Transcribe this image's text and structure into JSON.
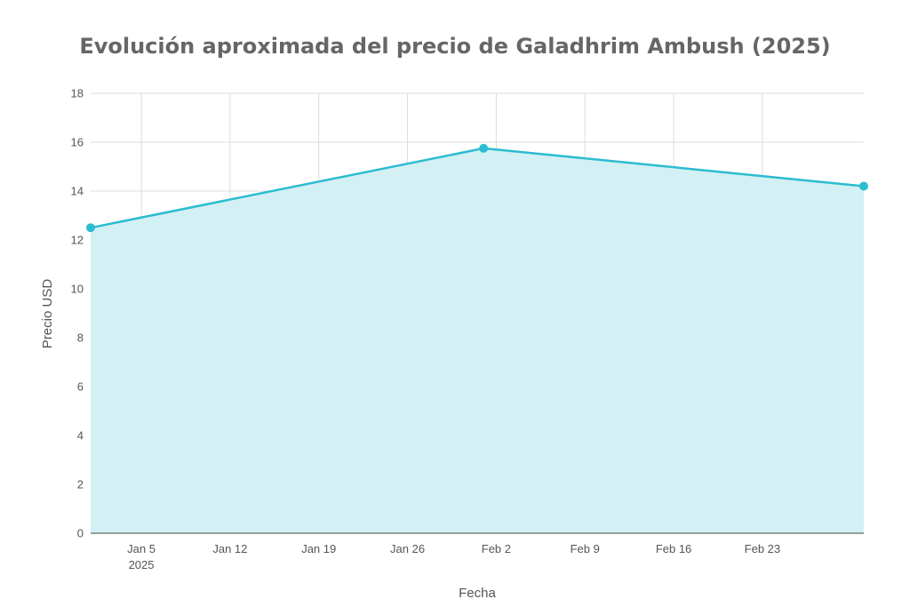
{
  "chart_data": {
    "type": "area",
    "title": "Evolución aproximada del precio de Galadhrim Ambush (2025)",
    "xlabel": "Fecha",
    "ylabel": "Precio USD",
    "x_type": "date",
    "xlim": [
      "2025-01-01",
      "2025-03-03"
    ],
    "ylim": [
      0,
      18
    ],
    "yticks": [
      0,
      2,
      4,
      6,
      8,
      10,
      12,
      14,
      16,
      18
    ],
    "xticks": [
      {
        "date": "2025-01-05",
        "label": "Jan 5",
        "sublabel": "2025"
      },
      {
        "date": "2025-01-12",
        "label": "Jan 12"
      },
      {
        "date": "2025-01-19",
        "label": "Jan 19"
      },
      {
        "date": "2025-01-26",
        "label": "Jan 26"
      },
      {
        "date": "2025-02-02",
        "label": "Feb 2"
      },
      {
        "date": "2025-02-09",
        "label": "Feb 9"
      },
      {
        "date": "2025-02-16",
        "label": "Feb 16"
      },
      {
        "date": "2025-02-23",
        "label": "Feb 23"
      }
    ],
    "grid": true,
    "series": [
      {
        "points": [
          {
            "x": "2025-01-01",
            "y": 12.5
          },
          {
            "x": "2025-02-01",
            "y": 15.75
          },
          {
            "x": "2025-03-03",
            "y": 14.2
          }
        ]
      }
    ],
    "colors": {
      "line": "#2bbcd0",
      "fill": "#d3f0f4",
      "grid": "#dddddd",
      "axis": "#444444"
    }
  }
}
